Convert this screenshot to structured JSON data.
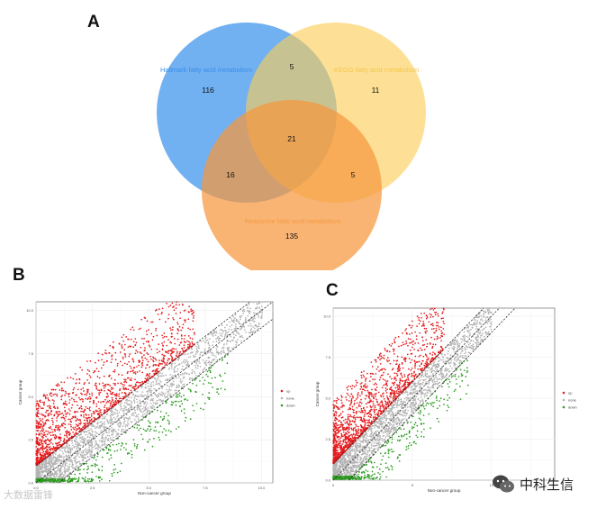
{
  "panels": {
    "a": "A",
    "b": "B",
    "c": "C"
  },
  "venn": {
    "sets": [
      {
        "name": "Hallmark fatty acid metabolism",
        "color": "#3a92ec",
        "label_color": "#3a8ee8"
      },
      {
        "name": "KEGG fatty acid metabolism",
        "color": "#fccd55",
        "label_color": "#f5c64a"
      },
      {
        "name": "Reactome fatty acid metabolism",
        "color": "#f7973f",
        "label_color": "#f59a42"
      }
    ],
    "counts": {
      "hallmark_only": "116",
      "kegg_only": "11",
      "reactome_only": "135",
      "hallmark_kegg": "5",
      "hallmark_reactome": "16",
      "kegg_reactome": "5",
      "all_three": "21"
    }
  },
  "chart_data": [
    {
      "type": "scatter",
      "panel": "B",
      "xlabel": "Non-cancer group",
      "ylabel": "Cancer group",
      "x_ticks": [
        "0.0",
        "2.5",
        "5.0",
        "7.5",
        "10.0"
      ],
      "y_ticks": [
        "0.0",
        "2.5",
        "5.0",
        "7.5",
        "10.0"
      ],
      "xlim": [
        0,
        10.5
      ],
      "ylim": [
        0,
        10.5
      ],
      "reference_lines": [
        "y = x - 1",
        "y = x",
        "y = x + 1"
      ],
      "series": [
        {
          "name": "up",
          "color": "#e41a1c",
          "y_minus_x_min": 1.0,
          "y_minus_x_max": 4.8,
          "x_max": 7.0
        },
        {
          "name": "none",
          "color": "#b3b3b3",
          "y_minus_x_min": -1.0,
          "y_minus_x_max": 1.0,
          "x_max": 10.0
        },
        {
          "name": "down",
          "color": "#2a9a1d",
          "y_minus_x_min": -3.2,
          "y_minus_x_max": -1.0,
          "x_max": 8.5
        }
      ],
      "legend": [
        "up",
        "none",
        "down"
      ],
      "legend_position": "right"
    },
    {
      "type": "scatter",
      "panel": "C",
      "xlabel": "Non-cancer group",
      "ylabel": "Cancer group",
      "x_ticks": [
        "0",
        "5",
        "10"
      ],
      "y_ticks": [
        "0.0",
        "2.5",
        "5.0",
        "7.5",
        "10.0"
      ],
      "xlim": [
        0,
        14
      ],
      "ylim": [
        0,
        10.5
      ],
      "reference_lines": [
        "y = x - 1",
        "y = x",
        "y = x + 1"
      ],
      "series": [
        {
          "name": "up",
          "color": "#e41a1c",
          "y_minus_x_min": 1.0,
          "y_minus_x_max": 4.8,
          "x_max": 7.0
        },
        {
          "name": "none",
          "color": "#b3b3b3",
          "y_minus_x_min": -1.0,
          "y_minus_x_max": 1.0,
          "x_max": 10.0
        },
        {
          "name": "down",
          "color": "#2a9a1d",
          "y_minus_x_min": -3.2,
          "y_minus_x_max": -1.0,
          "x_max": 8.5
        }
      ],
      "legend": [
        "up",
        "none",
        "down"
      ],
      "legend_position": "right"
    }
  ],
  "watermarks": {
    "left": "大数据雷锋",
    "right": "中科生信",
    "right_icon": "wechat-icon"
  }
}
